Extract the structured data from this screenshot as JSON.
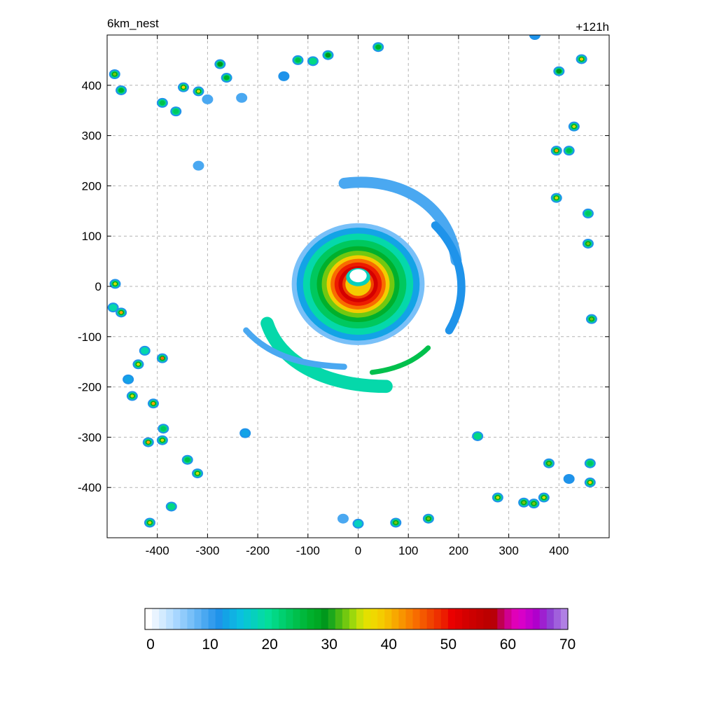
{
  "chart_data": {
    "type": "heatmap",
    "title_left": "6km_nest",
    "title_right": "+121h",
    "xlabel": "",
    "ylabel": "",
    "xlim": [
      -500,
      500
    ],
    "ylim": [
      -500,
      500
    ],
    "x_ticks": [
      -400,
      -300,
      -200,
      -100,
      0,
      100,
      200,
      300,
      400
    ],
    "y_ticks": [
      400,
      300,
      200,
      100,
      0,
      -100,
      -200,
      -300,
      -400
    ],
    "grid": true,
    "colorbar": {
      "min": 0,
      "max": 71,
      "tick_values": [
        0,
        10,
        20,
        30,
        40,
        50,
        60,
        70
      ],
      "colors": [
        "#ffffff",
        "#e9f4ff",
        "#d3ebff",
        "#bde1ff",
        "#a7d6ff",
        "#90cbfb",
        "#79c0f8",
        "#62b4f5",
        "#4aa8f1",
        "#339ced",
        "#1f93ea",
        "#13a3e6",
        "#10b1e3",
        "#0bbfe0",
        "#08c8d0",
        "#06d0bd",
        "#05d8aa",
        "#04de98",
        "#02d884",
        "#00d070",
        "#00c85e",
        "#00c04c",
        "#00b83c",
        "#00b02c",
        "#00a824",
        "#00981c",
        "#1ca81c",
        "#48b814",
        "#72c810",
        "#9cd80c",
        "#c8e008",
        "#e4e000",
        "#f0d800",
        "#f4cc00",
        "#f6bc00",
        "#f8a800",
        "#f89400",
        "#f88000",
        "#f86c00",
        "#f45800",
        "#f04400",
        "#ee3000",
        "#ec1c00",
        "#ea0000",
        "#e00000",
        "#d40000",
        "#cc0000",
        "#c40000",
        "#bc0000",
        "#b80008",
        "#c00050",
        "#d00090",
        "#e000b8",
        "#d800c8",
        "#c400cc",
        "#b000cc",
        "#9e20d0",
        "#9040d4",
        "#a060dc",
        "#b080e4"
      ]
    },
    "storm": {
      "center": [
        0,
        10
      ],
      "eye_radius_km": 20,
      "annotation": "single tropical-cyclone reflectivity field with eye near (0,10)"
    },
    "cells": [
      {
        "x": -485,
        "y": 422,
        "v": 34
      },
      {
        "x": -472,
        "y": 390,
        "v": 28
      },
      {
        "x": -390,
        "y": 365,
        "v": 26
      },
      {
        "x": -363,
        "y": 348,
        "v": 24
      },
      {
        "x": -348,
        "y": 396,
        "v": 38
      },
      {
        "x": -318,
        "y": 388,
        "v": 36
      },
      {
        "x": -275,
        "y": 442,
        "v": 30
      },
      {
        "x": -262,
        "y": 415,
        "v": 28
      },
      {
        "x": -300,
        "y": 372,
        "v": 10
      },
      {
        "x": -232,
        "y": 375,
        "v": 10
      },
      {
        "x": -318,
        "y": 240,
        "v": 10
      },
      {
        "x": -120,
        "y": 450,
        "v": 26
      },
      {
        "x": -90,
        "y": 448,
        "v": 22
      },
      {
        "x": -60,
        "y": 460,
        "v": 30
      },
      {
        "x": 40,
        "y": 476,
        "v": 28
      },
      {
        "x": -148,
        "y": 418,
        "v": 12
      },
      {
        "x": 400,
        "y": 428,
        "v": 30
      },
      {
        "x": 445,
        "y": 452,
        "v": 40
      },
      {
        "x": 430,
        "y": 318,
        "v": 36
      },
      {
        "x": 395,
        "y": 270,
        "v": 42
      },
      {
        "x": 420,
        "y": 270,
        "v": 26
      },
      {
        "x": 395,
        "y": 176,
        "v": 36
      },
      {
        "x": 458,
        "y": 85,
        "v": 34
      },
      {
        "x": 458,
        "y": 145,
        "v": 24
      },
      {
        "x": 465,
        "y": -65,
        "v": 34
      },
      {
        "x": 352,
        "y": 500,
        "v": 12
      },
      {
        "x": -484,
        "y": 5,
        "v": 36
      },
      {
        "x": -472,
        "y": -52,
        "v": 42
      },
      {
        "x": -488,
        "y": -42,
        "v": 20
      },
      {
        "x": -390,
        "y": -143,
        "v": 46
      },
      {
        "x": -438,
        "y": -155,
        "v": 36
      },
      {
        "x": -425,
        "y": -128,
        "v": 20
      },
      {
        "x": -450,
        "y": -218,
        "v": 36
      },
      {
        "x": -408,
        "y": -233,
        "v": 42
      },
      {
        "x": -418,
        "y": -310,
        "v": 42
      },
      {
        "x": -390,
        "y": -306,
        "v": 36
      },
      {
        "x": -388,
        "y": -283,
        "v": 24
      },
      {
        "x": -340,
        "y": -345,
        "v": 26
      },
      {
        "x": -320,
        "y": -372,
        "v": 36
      },
      {
        "x": -372,
        "y": -438,
        "v": 22
      },
      {
        "x": -415,
        "y": -470,
        "v": 36
      },
      {
        "x": -225,
        "y": -292,
        "v": 14
      },
      {
        "x": 75,
        "y": -470,
        "v": 34
      },
      {
        "x": 140,
        "y": -462,
        "v": 34
      },
      {
        "x": 238,
        "y": -298,
        "v": 22
      },
      {
        "x": 278,
        "y": -420,
        "v": 36
      },
      {
        "x": 330,
        "y": -430,
        "v": 34
      },
      {
        "x": 350,
        "y": -432,
        "v": 34
      },
      {
        "x": 370,
        "y": -420,
        "v": 36
      },
      {
        "x": 380,
        "y": -352,
        "v": 34
      },
      {
        "x": 462,
        "y": -352,
        "v": 24
      },
      {
        "x": 462,
        "y": -390,
        "v": 38
      },
      {
        "x": 420,
        "y": -383,
        "v": 12
      },
      {
        "x": 0,
        "y": -472,
        "v": 18
      },
      {
        "x": -30,
        "y": -462,
        "v": 10
      },
      {
        "x": -458,
        "y": -185,
        "v": 14
      }
    ]
  }
}
